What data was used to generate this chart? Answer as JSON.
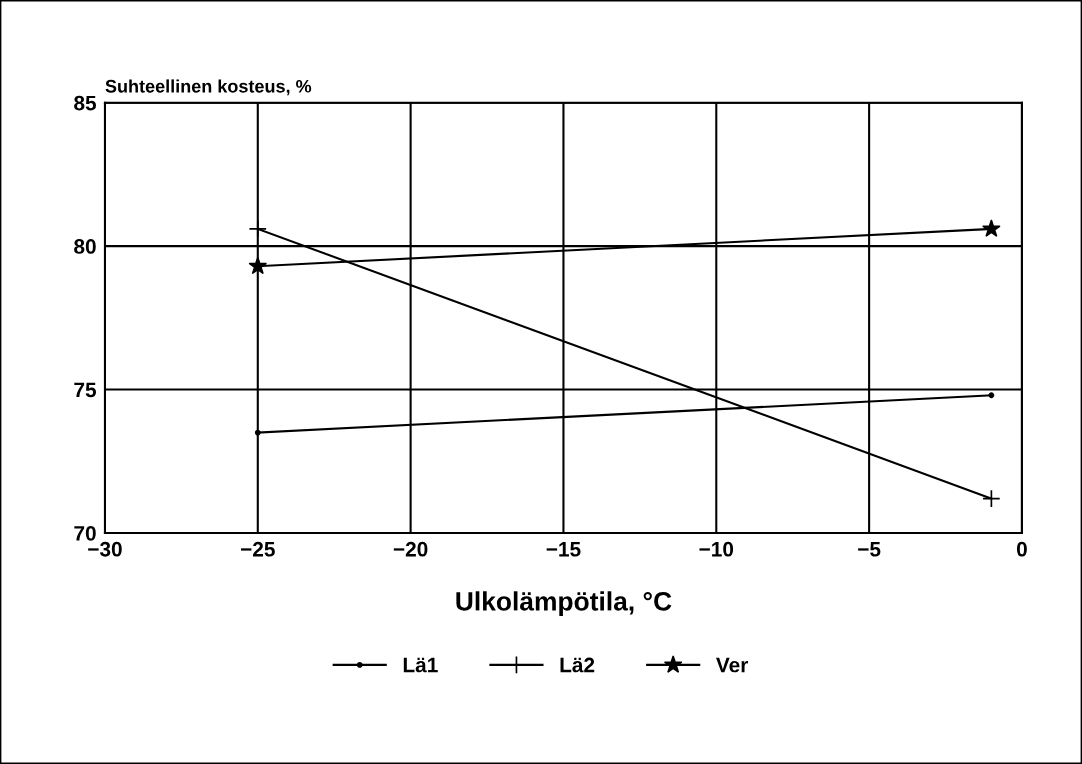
{
  "chart_data": {
    "type": "line",
    "ylabel": "Suhteellinen kosteus, %",
    "xlabel": "Ulkolämpötila, °C",
    "x": [
      -25,
      -1
    ],
    "series": [
      {
        "name": "Lä1",
        "color": "#000000",
        "marker": "circle",
        "values": [
          73.5,
          74.8
        ]
      },
      {
        "name": "Lä2",
        "color": "#000000",
        "marker": "cross",
        "values": [
          80.6,
          71.2
        ]
      },
      {
        "name": "Ver",
        "color": "#000000",
        "marker": "star",
        "values": [
          79.3,
          80.6
        ]
      }
    ],
    "xlim": [
      -30,
      0
    ],
    "xticks": [
      -30,
      -25,
      -20,
      -15,
      -10,
      -5,
      0
    ],
    "ylim": [
      70,
      85
    ],
    "yticks": [
      70,
      75,
      80,
      85
    ],
    "grid": true,
    "legend": "bottom",
    "line_style": "solid"
  }
}
